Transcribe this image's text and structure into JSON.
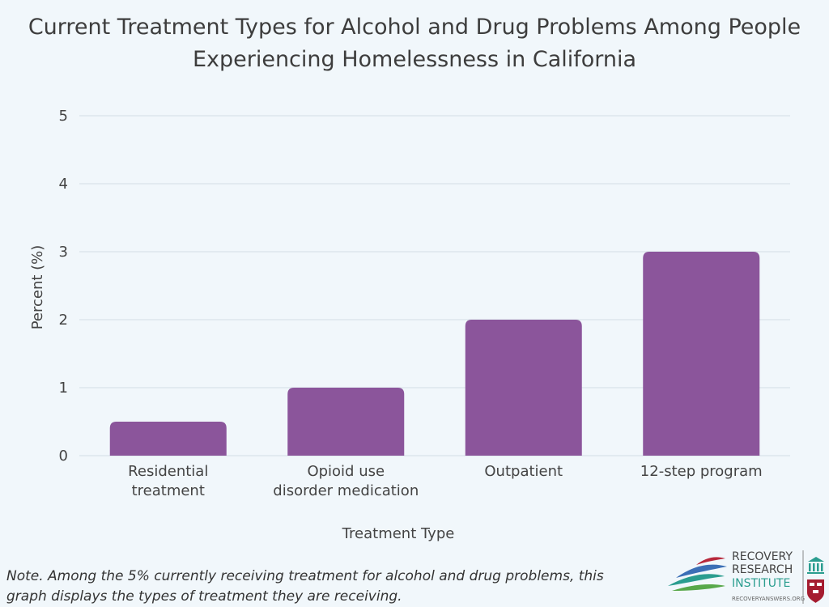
{
  "chart_data": {
    "type": "bar",
    "title": "Current Treatment Types for Alcohol and Drug Problems Among People\nExperiencing Homelessness in California",
    "xlabel": "Treatment Type",
    "ylabel": "Percent (%)",
    "ylim": [
      0,
      5
    ],
    "yticks": [
      "0",
      "1",
      "2",
      "3",
      "4",
      "5"
    ],
    "grid": true,
    "categories": [
      [
        "Residential",
        "treatment"
      ],
      [
        "Opioid use",
        "disorder medication"
      ],
      [
        "Outpatient"
      ],
      [
        "12-step program"
      ]
    ],
    "values": [
      0.5,
      1,
      2,
      3
    ],
    "bar_color": "#8b559b"
  },
  "note": "Note. Among the 5% currently receiving treatment for alcohol and drug problems, this graph displays the types of treatment they are receiving.",
  "logo": {
    "line1": "RECOVERY",
    "line2": "RESEARCH",
    "line3": "INSTITUTE",
    "url": "RECOVERYANSWERS.ORG",
    "accent": "#2a9d8f"
  }
}
